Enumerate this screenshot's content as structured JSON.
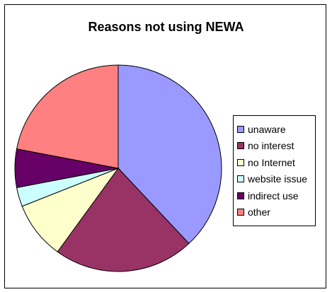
{
  "chart_data": {
    "type": "pie",
    "title": "Reasons not using NEWA",
    "categories": [
      "unaware",
      "no interest",
      "no Internet",
      "website issue",
      "indirect use",
      "other"
    ],
    "values": [
      38,
      22,
      9,
      3,
      6,
      22
    ],
    "colors": [
      "#9999FF",
      "#993366",
      "#FFFFCC",
      "#CCFFFF",
      "#660066",
      "#FF8080"
    ],
    "legend_position": "right"
  }
}
